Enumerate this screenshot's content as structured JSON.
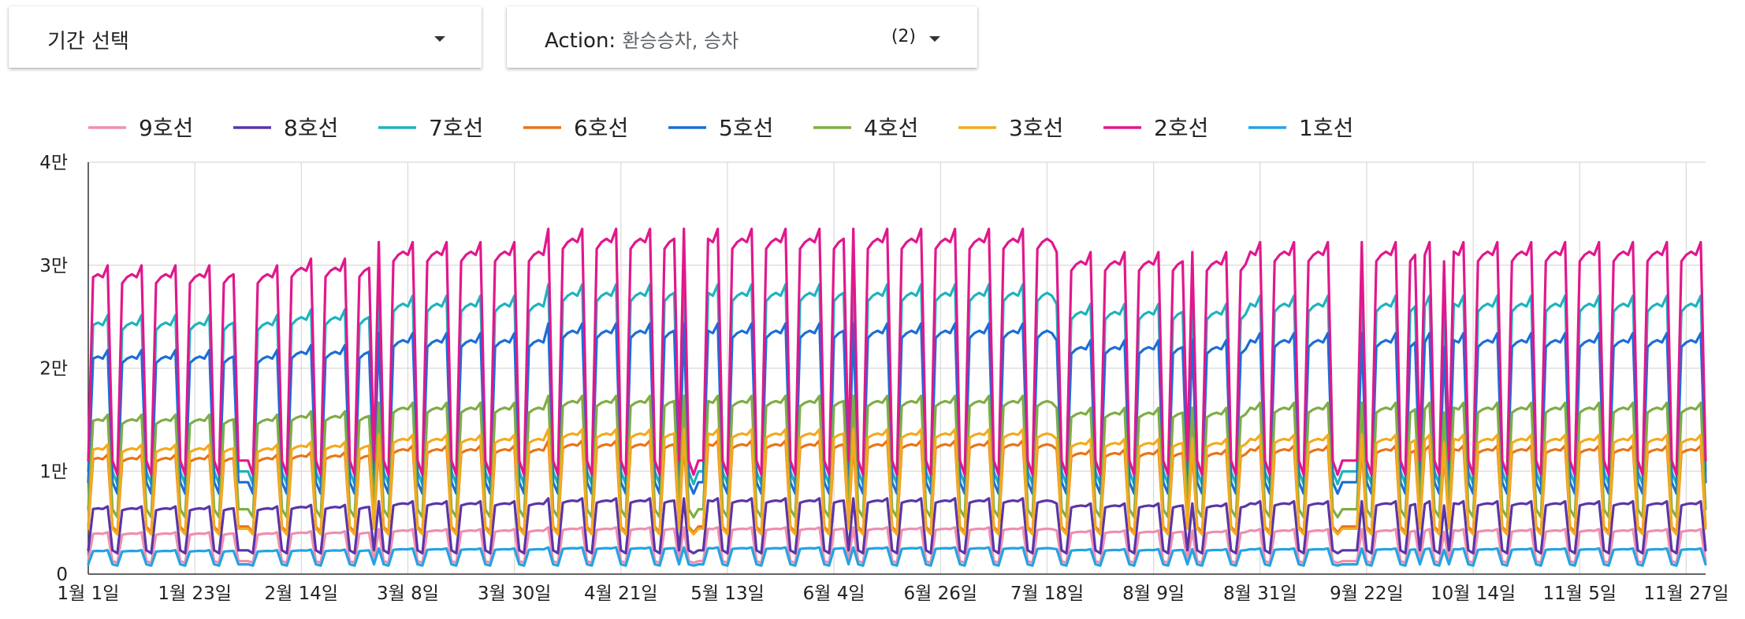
{
  "filters": {
    "period": {
      "label": "기간 선택"
    },
    "action": {
      "key": "Action:",
      "value": "환승승차, 승차",
      "count": "(2)"
    }
  },
  "colors": {
    "9호선": "#ef8fb0",
    "8호선": "#5b35a8",
    "7호선": "#1fb2c0",
    "6호선": "#e8741a",
    "5호선": "#1b6ed6",
    "4호선": "#7fad44",
    "3호선": "#f3aa1f",
    "2호선": "#e0188c",
    "1호선": "#22a4e2"
  },
  "chart_data": {
    "type": "line",
    "x_axis": {
      "type": "date",
      "start": "1월 1일",
      "end": "11월 30일",
      "granularity": "day"
    },
    "x_tick_labels": [
      "1월 1일",
      "1월 23일",
      "2월 14일",
      "3월 8일",
      "3월 30일",
      "4월 21일",
      "5월 13일",
      "6월 4일",
      "6월 26일",
      "7월 18일",
      "8월 9일",
      "8월 31일",
      "9월 22일",
      "10월 14일",
      "11월 5일",
      "11월 27일"
    ],
    "y_tick_labels": [
      "0",
      "1만",
      "2만",
      "3만",
      "4만"
    ],
    "ylim": [
      0,
      40000
    ],
    "grid": true,
    "legend": "top",
    "series": [
      {
        "name": "9호선",
        "weekday": 4200,
        "weekend": 1200
      },
      {
        "name": "8호선",
        "weekday": 6800,
        "weekend": 2200
      },
      {
        "name": "7호선",
        "weekday": 26000,
        "weekend": 9500
      },
      {
        "name": "6호선",
        "weekday": 12000,
        "weekend": 4400
      },
      {
        "name": "5호선",
        "weekday": 22500,
        "weekend": 8500
      },
      {
        "name": "4호선",
        "weekday": 16000,
        "weekend": 6000
      },
      {
        "name": "3호선",
        "weekday": 13000,
        "weekend": 4200
      },
      {
        "name": "2호선",
        "weekday": 31000,
        "weekend": 10500
      },
      {
        "name": "1호선",
        "weekday": 2400,
        "weekend": 900
      }
    ]
  }
}
